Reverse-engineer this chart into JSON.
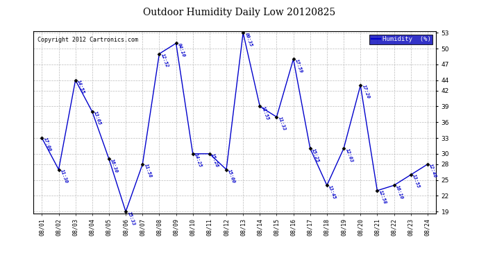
{
  "title": "Outdoor Humidity Daily Low 20120825",
  "copyright": "Copyright 2012 Cartronics.com",
  "legend_label": "Humidity  (%)",
  "background_color": "#ffffff",
  "line_color": "#0000cc",
  "marker_color": "#000000",
  "grid_color": "#bbbbbb",
  "ylim": [
    19,
    53
  ],
  "yticks": [
    19,
    22,
    25,
    28,
    30,
    33,
    36,
    39,
    42,
    44,
    47,
    50,
    53
  ],
  "data_points": [
    {
      "date": "08/01",
      "time": "17:00",
      "value": 33
    },
    {
      "date": "08/02",
      "time": "11:30",
      "value": 27
    },
    {
      "date": "08/03",
      "time": "14:55",
      "value": 44
    },
    {
      "date": "08/04",
      "time": "13:05",
      "value": 38
    },
    {
      "date": "08/05",
      "time": "16:30",
      "value": 29
    },
    {
      "date": "08/06",
      "time": "15:33",
      "value": 19
    },
    {
      "date": "08/07",
      "time": "11:58",
      "value": 28
    },
    {
      "date": "08/08",
      "time": "12:52",
      "value": 49
    },
    {
      "date": "08/09",
      "time": "04:10",
      "value": 51
    },
    {
      "date": "08/10",
      "time": "14:25",
      "value": 30
    },
    {
      "date": "08/11",
      "time": "15:26",
      "value": 30
    },
    {
      "date": "08/12",
      "time": "15:00",
      "value": 27
    },
    {
      "date": "08/13",
      "time": "00:35",
      "value": 53
    },
    {
      "date": "08/14",
      "time": "11:55",
      "value": 39
    },
    {
      "date": "08/15",
      "time": "11:33",
      "value": 37
    },
    {
      "date": "08/16",
      "time": "17:59",
      "value": 48
    },
    {
      "date": "08/17",
      "time": "15:25",
      "value": 31
    },
    {
      "date": "08/18",
      "time": "13:45",
      "value": 24
    },
    {
      "date": "08/19",
      "time": "12:03",
      "value": 31
    },
    {
      "date": "08/20",
      "time": "17:20",
      "value": 43
    },
    {
      "date": "08/21",
      "time": "12:58",
      "value": 23
    },
    {
      "date": "08/22",
      "time": "16:10",
      "value": 24
    },
    {
      "date": "08/23",
      "time": "13:55",
      "value": 26
    },
    {
      "date": "08/24",
      "time": "12:46",
      "value": 28
    }
  ]
}
